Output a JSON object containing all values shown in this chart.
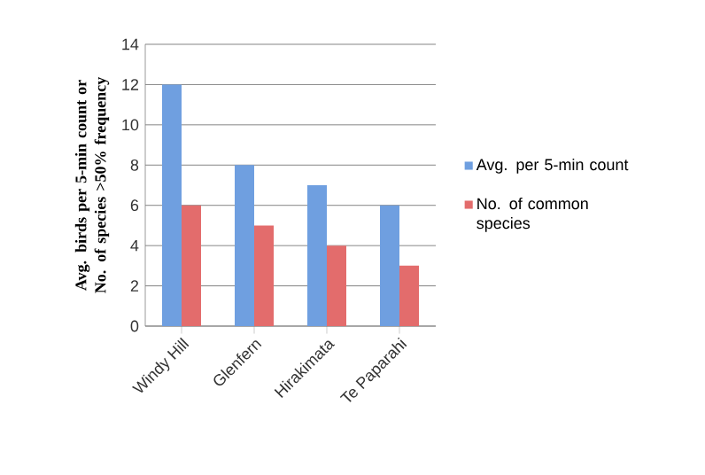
{
  "chart_data": {
    "type": "bar",
    "ylabel": "Avg. birds per 5-min count or No. of species >50% frequency",
    "categories": [
      "Windy Hill",
      "Glenfern",
      "Hirakimata",
      "Te Paparahi"
    ],
    "series": [
      {
        "name": "Avg. per 5-min count",
        "color": "#6f9fe0",
        "values": [
          12,
          8,
          7,
          6
        ]
      },
      {
        "name": "No. of common species",
        "color": "#e36c6c",
        "values": [
          6,
          5,
          4,
          3
        ]
      }
    ],
    "ylim": [
      0,
      14
    ],
    "yticks": [
      0,
      2,
      4,
      6,
      8,
      10,
      12,
      14
    ],
    "grid": "y",
    "legend": "right"
  }
}
